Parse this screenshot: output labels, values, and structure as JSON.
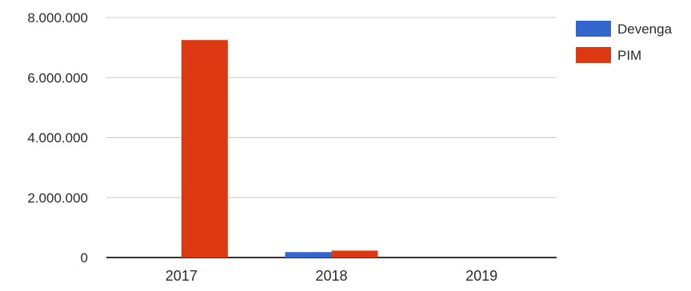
{
  "chart_data": {
    "type": "bar",
    "categories": [
      "2017",
      "2018",
      "2019"
    ],
    "series": [
      {
        "name": "Devenga",
        "color": "#3366cc",
        "values": [
          0,
          180000,
          0
        ]
      },
      {
        "name": "PIM",
        "color": "#dc3912",
        "values": [
          7250000,
          230000,
          0
        ]
      }
    ],
    "ylim": [
      0,
      8000000
    ],
    "y_ticks": [
      0,
      2000000,
      4000000,
      6000000,
      8000000
    ],
    "y_tick_labels": [
      "0",
      "2.000.000",
      "4.000.000",
      "6.000.000",
      "8.000.000"
    ],
    "grid": true,
    "legend_position": "top-right"
  }
}
